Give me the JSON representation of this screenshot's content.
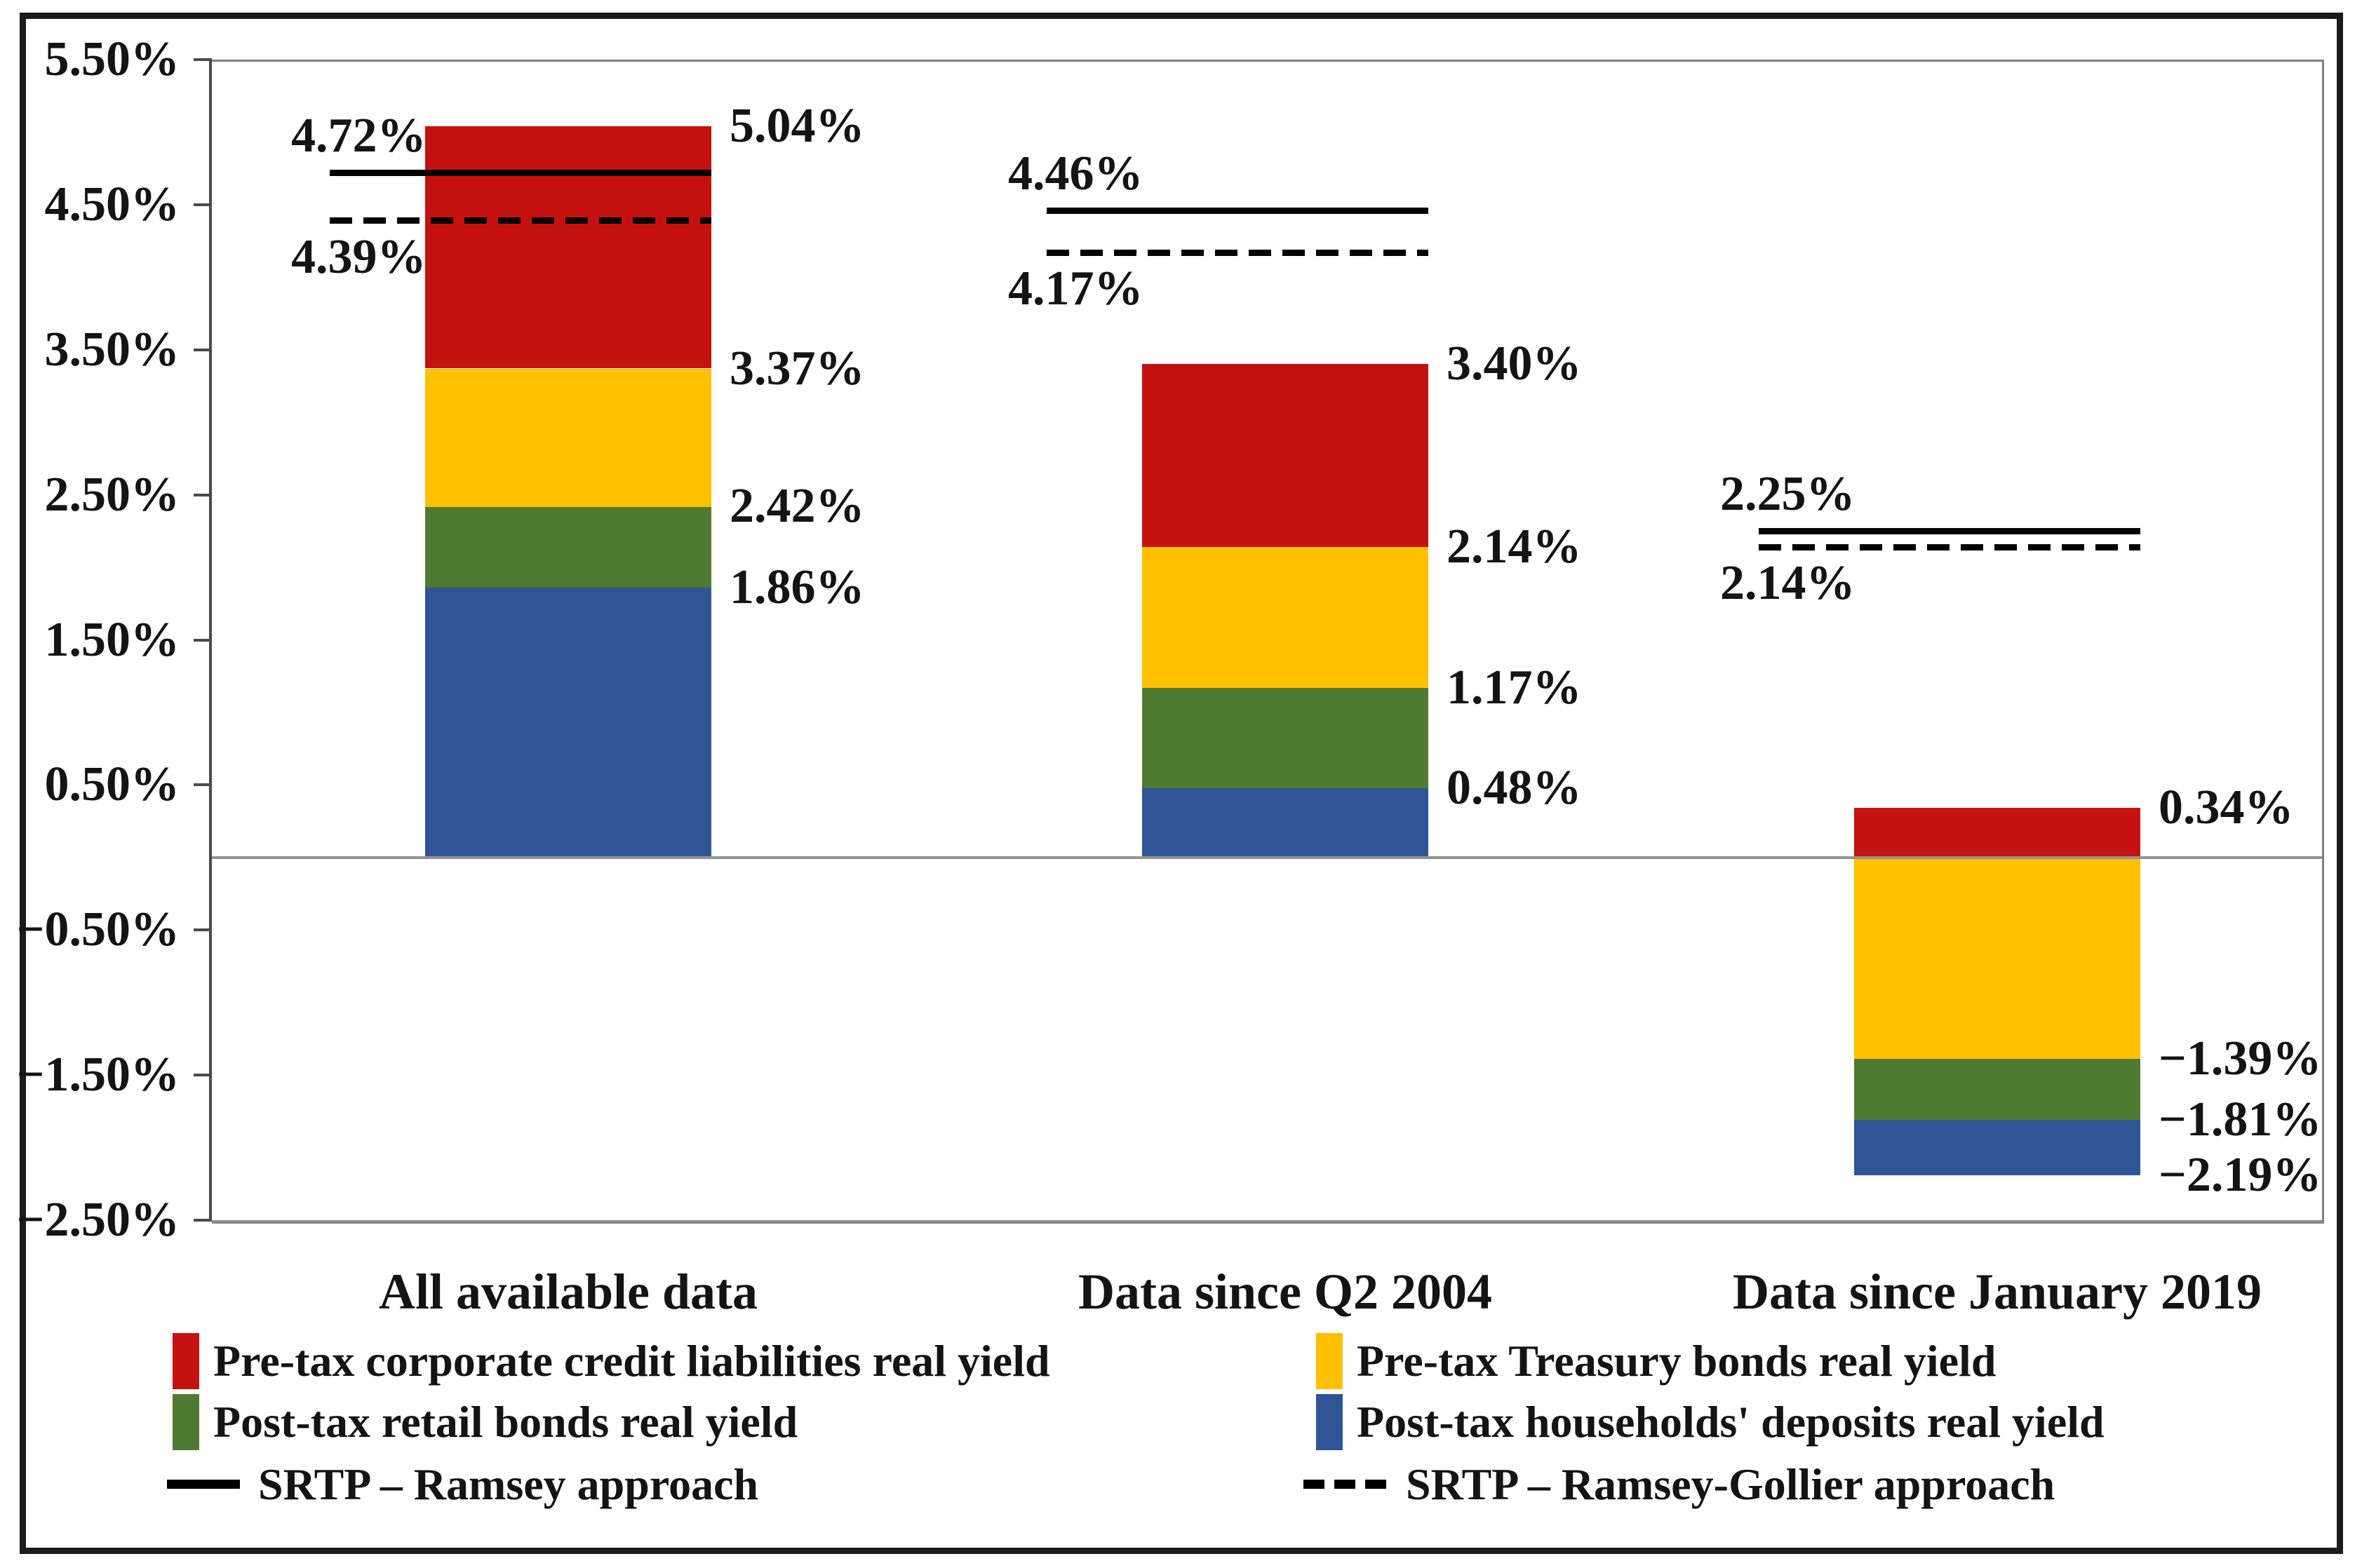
{
  "chart_data": {
    "type": "bar",
    "stacked": true,
    "title": "",
    "y_axis": {
      "min": -2.5,
      "max": 5.5,
      "tick_labels": [
        "5.50%",
        "4.50%",
        "3.50%",
        "2.50%",
        "1.50%",
        "0.50%",
        "−0.50%",
        "−1.50%",
        "−2.50%"
      ],
      "tick_values": [
        5.5,
        4.5,
        3.5,
        2.5,
        1.5,
        0.5,
        -0.5,
        -1.5,
        -2.5
      ],
      "grid": "zero-line-only"
    },
    "categories": [
      "All available data",
      "Data since Q2 2004",
      "Data since January 2019"
    ],
    "series": [
      {
        "id": "corporate",
        "name": "Pre-tax corporate credit liabilities real yield",
        "color": "#C61111"
      },
      {
        "id": "treasury",
        "name": "Pre-tax Treasury bonds real yield",
        "color": "#FFC000"
      },
      {
        "id": "retail",
        "name": "Post-tax retail bonds real yield",
        "color": "#4E7B31"
      },
      {
        "id": "deposits",
        "name": "Post-tax households' deposits real yield",
        "color": "#2F5597"
      }
    ],
    "srtp_lines": [
      {
        "id": "ramsey",
        "name": "SRTP – Ramsey approach",
        "style": "solid",
        "color": "#000000"
      },
      {
        "id": "gollier",
        "name": "SRTP – Ramsey-Gollier approach",
        "style": "dashed",
        "color": "#000000"
      }
    ],
    "groups": [
      {
        "label": "All available data",
        "segments": [
          {
            "series": "deposits",
            "from": 0,
            "to": 1.86
          },
          {
            "series": "retail",
            "from": 1.86,
            "to": 2.42
          },
          {
            "series": "treasury",
            "from": 2.42,
            "to": 3.37
          },
          {
            "series": "corporate",
            "from": 3.37,
            "to": 5.04
          }
        ],
        "right_labels": [
          {
            "value": 5.04,
            "text": "5.04%"
          },
          {
            "value": 3.37,
            "text": "3.37%"
          },
          {
            "value": 2.42,
            "text": "2.42%"
          },
          {
            "value": 1.86,
            "text": "1.86%"
          }
        ],
        "ramsey": {
          "value": 4.72,
          "text": "4.72%"
        },
        "gollier": {
          "value": 4.39,
          "text": "4.39%"
        }
      },
      {
        "label": "Data since Q2 2004",
        "segments": [
          {
            "series": "deposits",
            "from": 0,
            "to": 0.48
          },
          {
            "series": "retail",
            "from": 0.48,
            "to": 1.17
          },
          {
            "series": "treasury",
            "from": 1.17,
            "to": 2.14
          },
          {
            "series": "corporate",
            "from": 2.14,
            "to": 3.4
          }
        ],
        "right_labels": [
          {
            "value": 3.4,
            "text": "3.40%"
          },
          {
            "value": 2.14,
            "text": "2.14%"
          },
          {
            "value": 1.17,
            "text": "1.17%"
          },
          {
            "value": 0.48,
            "text": "0.48%"
          }
        ],
        "ramsey": {
          "value": 4.46,
          "text": "4.46%"
        },
        "gollier": {
          "value": 4.17,
          "text": "4.17%"
        }
      },
      {
        "label": "Data since January 2019",
        "segments": [
          {
            "series": "corporate",
            "from": 0,
            "to": 0.34
          },
          {
            "series": "treasury",
            "from": -1.39,
            "to": 0
          },
          {
            "series": "retail",
            "from": -1.81,
            "to": -1.39
          },
          {
            "series": "deposits",
            "from": -2.19,
            "to": -1.81
          }
        ],
        "right_labels": [
          {
            "value": 0.34,
            "text": "0.34%"
          },
          {
            "value": -1.39,
            "text": "−1.39%"
          },
          {
            "value": -1.81,
            "text": "−1.81%"
          },
          {
            "value": -2.19,
            "text": "−2.19%"
          }
        ],
        "ramsey": {
          "value": 2.25,
          "text": "2.25%"
        },
        "gollier": {
          "value": 2.14,
          "text": "2.14%"
        }
      }
    ],
    "legend_position": "bottom",
    "legend_rows": [
      [
        "corporate",
        "treasury"
      ],
      [
        "retail",
        "deposits"
      ],
      [
        "ramsey",
        "gollier"
      ]
    ]
  }
}
